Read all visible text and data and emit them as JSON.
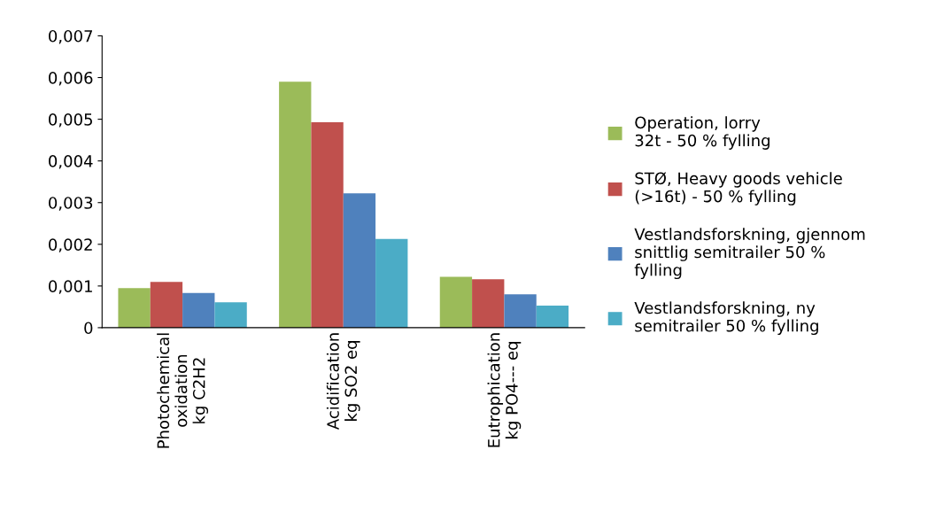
{
  "chart_data": {
    "type": "bar",
    "categories": [
      "Photochemical\noxidation\nkg C2H2",
      "Acidification\nkg SO2 eq",
      "Eutrophication\nkg PO4--- eq"
    ],
    "series": [
      {
        "name": "Operation, lorry\n32t - 50 % fylling",
        "color": "#9bbb59",
        "values": [
          0.00095,
          0.0059,
          0.00122
        ]
      },
      {
        "name": "STØ, Heavy goods vehicle\n(>16t) - 50 % fylling",
        "color": "#c0504d",
        "values": [
          0.0011,
          0.00493,
          0.00116
        ]
      },
      {
        "name": "Vestlandsforskning, gjennom\nsnittlig semitrailer 50 %\nfylling",
        "color": "#4f81bd",
        "values": [
          0.00083,
          0.00322,
          0.0008
        ]
      },
      {
        "name": "Vestlandsforskning, ny\nsemitrailer 50 % fylling",
        "color": "#4bacc6",
        "values": [
          0.00061,
          0.00213,
          0.00053
        ]
      }
    ],
    "ylim": [
      0,
      0.007
    ],
    "yticks": [
      {
        "value": 0,
        "label": "0"
      },
      {
        "value": 0.001,
        "label": "0,001"
      },
      {
        "value": 0.002,
        "label": "0,002"
      },
      {
        "value": 0.003,
        "label": "0,003"
      },
      {
        "value": 0.004,
        "label": "0,004"
      },
      {
        "value": 0.005,
        "label": "0,005"
      },
      {
        "value": 0.006,
        "label": "0,006"
      },
      {
        "value": 0.007,
        "label": "0,007"
      }
    ],
    "grid": false,
    "legend": "right"
  }
}
